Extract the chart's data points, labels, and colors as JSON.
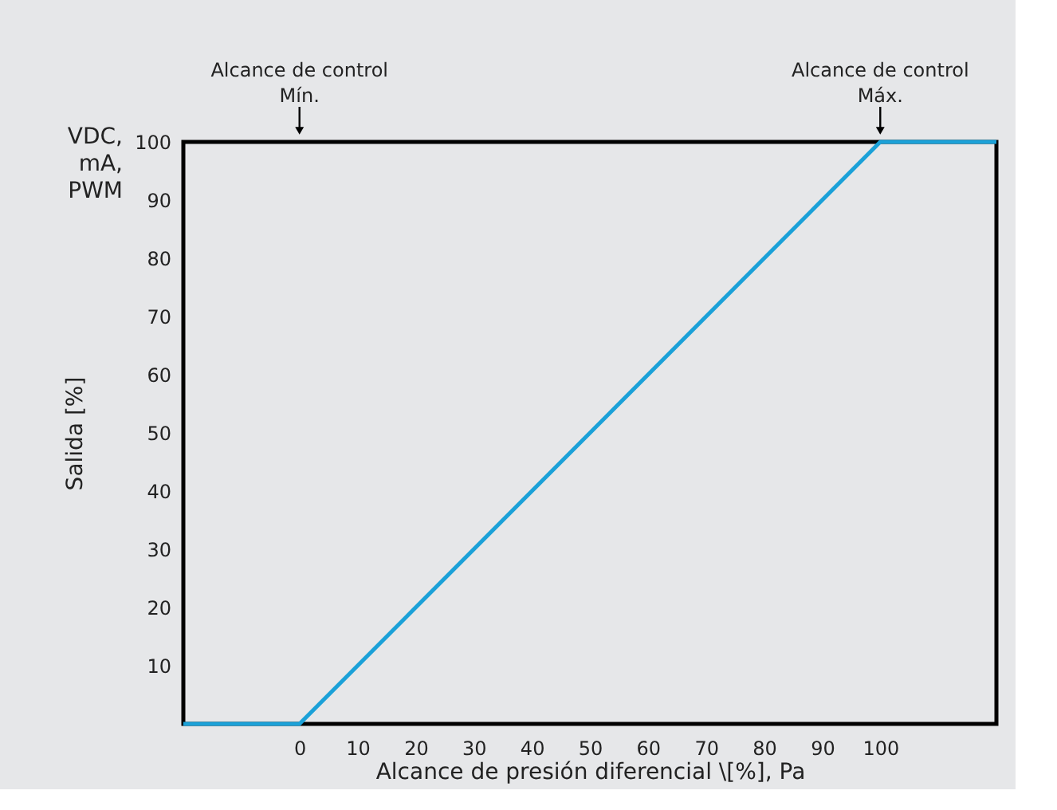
{
  "chart_data": {
    "type": "line",
    "x": [
      -20,
      0,
      100,
      120
    ],
    "values": [
      0,
      0,
      100,
      100
    ],
    "color": "#1ba1d8",
    "xlim": [
      -20,
      120
    ],
    "xticks": [
      0,
      10,
      20,
      30,
      40,
      50,
      60,
      70,
      80,
      90,
      100
    ],
    "ylim": [
      0,
      100
    ],
    "yticks": [
      10,
      20,
      30,
      40,
      50,
      60,
      70,
      80,
      90,
      100
    ],
    "xlabel": "Alcance de presión diferencial \\[%], Pa",
    "ylabel": "Salida [%]",
    "annotations": [
      {
        "text": "Alcance de control Mín.",
        "x": 0
      },
      {
        "text": "Alcance de control Máx.",
        "x": 100
      },
      "VDC, mA, PWM"
    ],
    "grid": false,
    "marker": "none",
    "line_style": "solid"
  }
}
